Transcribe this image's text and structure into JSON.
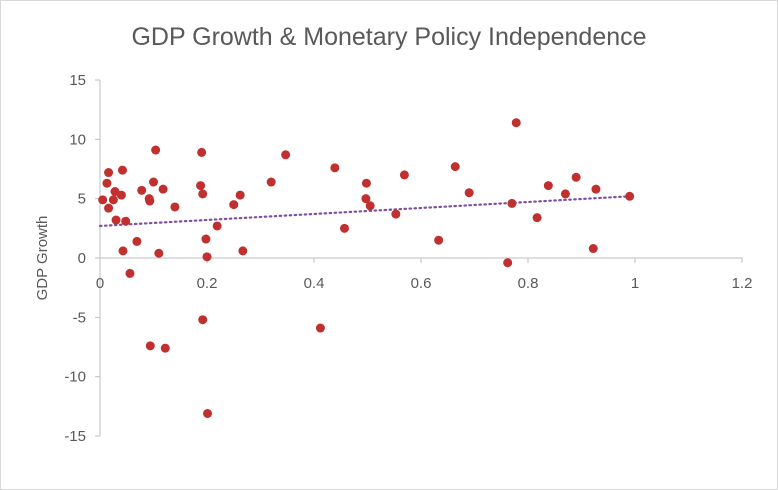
{
  "chart_data": {
    "type": "scatter",
    "title": "GDP Growth & Monetary Policy Independence",
    "xlabel": "",
    "ylabel": "GDP Growth",
    "xlim": [
      0,
      1.2
    ],
    "ylim": [
      -15,
      15
    ],
    "x_ticks": [
      "0",
      "0.2",
      "0.4",
      "0.6",
      "0.8",
      "1",
      "1.2"
    ],
    "y_ticks": [
      "15",
      "10",
      "5",
      "0",
      "-5",
      "-10",
      "-15"
    ],
    "x_tick_values": [
      0,
      0.2,
      0.4,
      0.6,
      0.8,
      1.0,
      1.2
    ],
    "y_tick_values": [
      15,
      10,
      5,
      0,
      -5,
      -10,
      -15
    ],
    "grid": false,
    "marker_color": "#c0302f",
    "trendline": {
      "style": "dotted",
      "color": "#7f4ea0",
      "start": [
        0,
        2.7
      ],
      "end": [
        0.99,
        5.2
      ]
    },
    "series": [
      {
        "name": "GDP Growth",
        "points": [
          [
            0.005,
            4.9
          ],
          [
            0.013,
            6.3
          ],
          [
            0.016,
            7.2
          ],
          [
            0.016,
            4.2
          ],
          [
            0.025,
            4.9
          ],
          [
            0.028,
            5.6
          ],
          [
            0.03,
            3.2
          ],
          [
            0.04,
            5.3
          ],
          [
            0.042,
            7.4
          ],
          [
            0.043,
            0.6
          ],
          [
            0.048,
            3.1
          ],
          [
            0.056,
            -1.3
          ],
          [
            0.069,
            1.4
          ],
          [
            0.078,
            5.7
          ],
          [
            0.092,
            5.0
          ],
          [
            0.093,
            4.8
          ],
          [
            0.094,
            -7.4
          ],
          [
            0.1,
            6.4
          ],
          [
            0.104,
            9.1
          ],
          [
            0.11,
            0.4
          ],
          [
            0.118,
            5.8
          ],
          [
            0.122,
            -7.6
          ],
          [
            0.14,
            4.3
          ],
          [
            0.188,
            6.1
          ],
          [
            0.19,
            8.9
          ],
          [
            0.192,
            5.4
          ],
          [
            0.192,
            -5.2
          ],
          [
            0.198,
            1.6
          ],
          [
            0.2,
            0.1
          ],
          [
            0.201,
            -13.1
          ],
          [
            0.219,
            2.7
          ],
          [
            0.25,
            4.5
          ],
          [
            0.262,
            5.3
          ],
          [
            0.267,
            0.6
          ],
          [
            0.32,
            6.4
          ],
          [
            0.347,
            8.7
          ],
          [
            0.412,
            -5.9
          ],
          [
            0.439,
            7.6
          ],
          [
            0.457,
            2.5
          ],
          [
            0.497,
            5.0
          ],
          [
            0.498,
            6.3
          ],
          [
            0.505,
            4.4
          ],
          [
            0.553,
            3.7
          ],
          [
            0.569,
            7.0
          ],
          [
            0.633,
            1.5
          ],
          [
            0.664,
            7.7
          ],
          [
            0.69,
            5.5
          ],
          [
            0.762,
            -0.4
          ],
          [
            0.77,
            4.6
          ],
          [
            0.778,
            11.4
          ],
          [
            0.817,
            3.4
          ],
          [
            0.838,
            6.1
          ],
          [
            0.87,
            5.4
          ],
          [
            0.89,
            6.8
          ],
          [
            0.922,
            0.8
          ],
          [
            0.927,
            5.8
          ],
          [
            0.99,
            5.2
          ]
        ]
      }
    ]
  }
}
